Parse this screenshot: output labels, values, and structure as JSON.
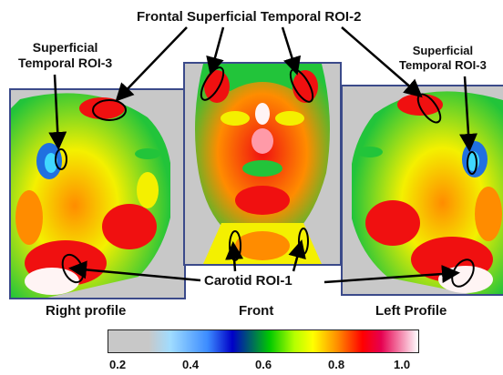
{
  "annotations": {
    "top_label": "Frontal Superficial Temporal ROI-2",
    "left_label_line1": "Superficial",
    "left_label_line2": "Temporal ROI-3",
    "right_label_line1": "Superficial",
    "right_label_line2": "Temporal ROI-3",
    "bottom_label": "Carotid ROI-1"
  },
  "captions": {
    "left": "Right profile",
    "center": "Front",
    "right": "Left Profile"
  },
  "colorbar": {
    "ticks": [
      "0.2",
      "0.4",
      "0.6",
      "0.8",
      "1.0"
    ],
    "colors": [
      "#c8c8c8",
      "#a0dcff",
      "#3c8cff",
      "#0000c8",
      "#00c800",
      "#b4ff00",
      "#ffff00",
      "#ff8c00",
      "#ff0000",
      "#e60050",
      "#ffffff"
    ]
  },
  "heat_colors": {
    "gray": "#c8c8c8",
    "green": "#22c43a",
    "yellow": "#f4f000",
    "orange": "#ff8c00",
    "red": "#f01010",
    "pink": "#ff9aa8",
    "white": "#fff4f4",
    "blue": "#2070e0",
    "cyan": "#40d8ff"
  }
}
